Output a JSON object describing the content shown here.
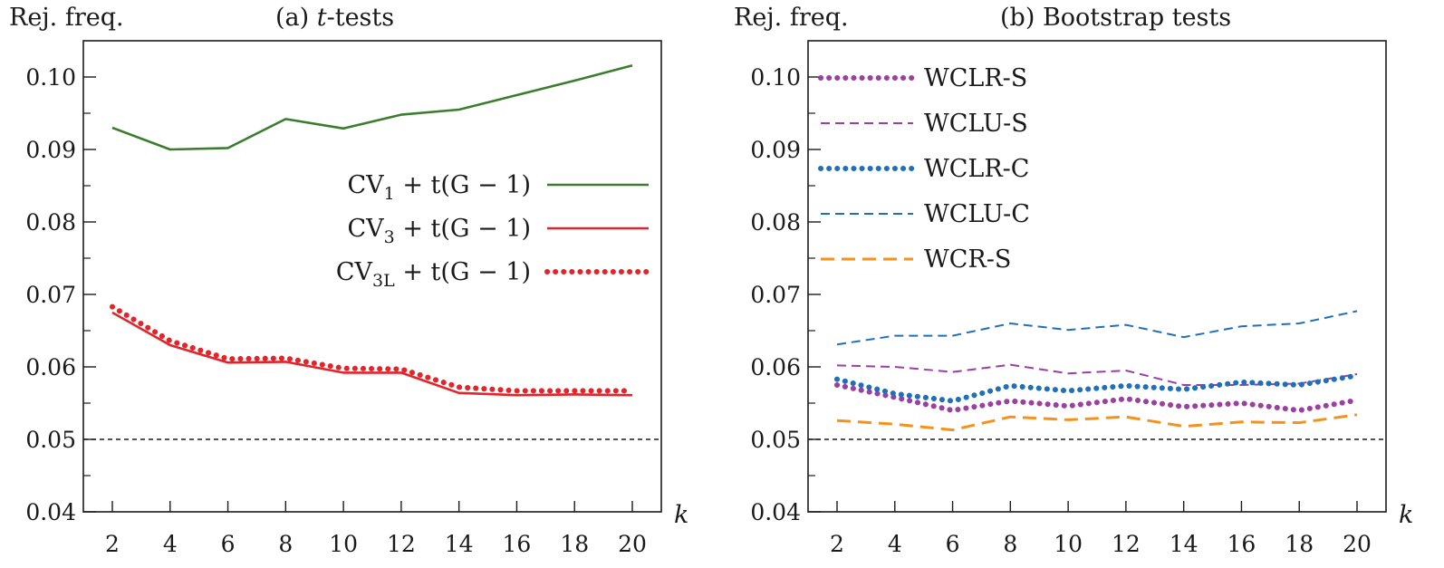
{
  "chart_data": [
    {
      "type": "line",
      "panel_label": "(a)",
      "title_italic": "t",
      "title_rest": "-tests",
      "ylabel": "Rej. freq.",
      "xlabel": "k",
      "x": [
        2,
        4,
        6,
        8,
        10,
        12,
        14,
        16,
        18,
        20
      ],
      "xticks": [
        "2",
        "4",
        "6",
        "8",
        "10",
        "12",
        "14",
        "16",
        "18",
        "20"
      ],
      "ylim": [
        0.04,
        0.105
      ],
      "yticks": [
        "0.04",
        "0.05",
        "0.06",
        "0.07",
        "0.08",
        "0.09",
        "0.10"
      ],
      "reference_line": 0.05,
      "legend_position": "center-right",
      "series": [
        {
          "name": "CV1 + t(G − 1)",
          "label_base": "CV",
          "label_sub": "1",
          "label_suffix": " + t(G − 1)",
          "color": "#3a7d2c",
          "style": "solid",
          "values": [
            0.093,
            0.09,
            0.0902,
            0.0942,
            0.0929,
            0.0948,
            0.0955,
            0.0975,
            0.0995,
            0.1016
          ]
        },
        {
          "name": "CV3 + t(G − 1)",
          "label_base": "CV",
          "label_sub": "3",
          "label_suffix": " + t(G − 1)",
          "color": "#e3242b",
          "style": "solid",
          "values": [
            0.0675,
            0.063,
            0.0606,
            0.0607,
            0.0592,
            0.0592,
            0.0564,
            0.0561,
            0.0562,
            0.0561
          ]
        },
        {
          "name": "CV3L + t(G − 1)",
          "label_base": "CV",
          "label_sub": "3L",
          "label_suffix": " + t(G − 1)",
          "color": "#e3242b",
          "style": "dotted",
          "values": [
            0.0683,
            0.0636,
            0.0611,
            0.0612,
            0.0598,
            0.0597,
            0.0572,
            0.0567,
            0.0567,
            0.0567
          ]
        }
      ]
    },
    {
      "type": "line",
      "panel_label": "(b)",
      "title_italic": "",
      "title_rest": "Bootstrap tests",
      "ylabel": "Rej. freq.",
      "xlabel": "k",
      "x": [
        2,
        4,
        6,
        8,
        10,
        12,
        14,
        16,
        18,
        20
      ],
      "xticks": [
        "2",
        "4",
        "6",
        "8",
        "10",
        "12",
        "14",
        "16",
        "18",
        "20"
      ],
      "ylim": [
        0.04,
        0.105
      ],
      "yticks": [
        "0.04",
        "0.05",
        "0.06",
        "0.07",
        "0.08",
        "0.09",
        "0.10"
      ],
      "reference_line": 0.05,
      "legend_position": "top-left",
      "series": [
        {
          "name": "WCLR-S",
          "color": "#9b3fa0",
          "style": "dotted",
          "values": [
            0.0575,
            0.0558,
            0.054,
            0.0553,
            0.0546,
            0.0556,
            0.0545,
            0.055,
            0.054,
            0.0554
          ]
        },
        {
          "name": "WCLU-S",
          "color": "#9b3fa0",
          "style": "dashed",
          "values": [
            0.0602,
            0.06,
            0.0593,
            0.0603,
            0.0591,
            0.0595,
            0.0575,
            0.0575,
            0.0577,
            0.059
          ]
        },
        {
          "name": "WCLR-C",
          "color": "#1f70b8",
          "style": "dotted",
          "values": [
            0.0583,
            0.0563,
            0.0553,
            0.0574,
            0.0567,
            0.0574,
            0.0569,
            0.0579,
            0.0575,
            0.0588
          ]
        },
        {
          "name": "WCLU-C",
          "color": "#1f70b8",
          "style": "dashed",
          "values": [
            0.0631,
            0.0643,
            0.0643,
            0.066,
            0.0651,
            0.0658,
            0.0641,
            0.0656,
            0.066,
            0.0677
          ]
        },
        {
          "name": "WCR-S",
          "color": "#f5921e",
          "style": "longdash",
          "values": [
            0.0526,
            0.0521,
            0.0513,
            0.0531,
            0.0527,
            0.0531,
            0.0518,
            0.0524,
            0.0523,
            0.0534
          ]
        }
      ]
    }
  ]
}
